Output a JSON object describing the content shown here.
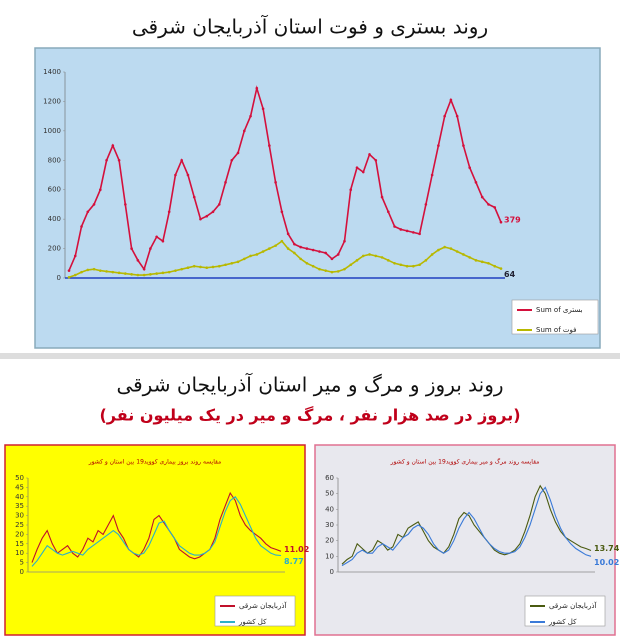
{
  "heading": "روند بروز و مرگ و میر استان آذربایجان شرقی",
  "subheading": "(بروز در صد هزار نفر ، مرگ و میر در یک میلیون نفر)",
  "chart_data": [
    {
      "type": "line",
      "title": "روند بستری و فوت استان آذربایجان شرقی",
      "ylim": [
        0,
        1400
      ],
      "yticks": [
        0,
        200,
        400,
        600,
        800,
        1000,
        1200,
        1400
      ],
      "grid": false,
      "legend": "right",
      "background": "#bcdaf0",
      "series": [
        {
          "name": "Sum of بستری",
          "color": "#d4103c",
          "values": [
            50,
            150,
            350,
            450,
            500,
            600,
            800,
            900,
            800,
            500,
            200,
            120,
            60,
            200,
            280,
            250,
            450,
            700,
            800,
            700,
            550,
            400,
            420,
            450,
            500,
            650,
            800,
            850,
            1000,
            1100,
            1290,
            1150,
            900,
            650,
            450,
            300,
            230,
            210,
            200,
            190,
            180,
            170,
            130,
            160,
            250,
            600,
            750,
            720,
            840,
            800,
            550,
            450,
            350,
            330,
            320,
            310,
            300,
            500,
            700,
            900,
            1100,
            1210,
            1100,
            900,
            750,
            650,
            550,
            500,
            480,
            379
          ]
        },
        {
          "name": "Sum of فوت",
          "color": "#b8b800",
          "values": [
            5,
            20,
            40,
            55,
            60,
            50,
            45,
            40,
            35,
            30,
            25,
            20,
            20,
            25,
            30,
            35,
            40,
            50,
            60,
            70,
            80,
            75,
            70,
            75,
            80,
            90,
            100,
            110,
            130,
            150,
            160,
            180,
            200,
            220,
            250,
            200,
            170,
            130,
            100,
            80,
            60,
            50,
            40,
            45,
            60,
            90,
            120,
            150,
            160,
            150,
            140,
            120,
            100,
            90,
            80,
            80,
            90,
            120,
            160,
            190,
            210,
            200,
            180,
            160,
            140,
            120,
            110,
            100,
            80,
            64
          ]
        }
      ]
    },
    {
      "type": "line",
      "title": "مقایسه روند بروز بیماری کووید19 بین استان و کشور",
      "ylim": [
        0,
        50
      ],
      "yticks": [
        0,
        5,
        10,
        15,
        20,
        25,
        30,
        35,
        40,
        45,
        50
      ],
      "grid": false,
      "legend": "bottom-right",
      "background": "#ffff00",
      "series": [
        {
          "name": "آذربایجان شرقی",
          "color": "#c0102a",
          "values": [
            5,
            12,
            18,
            22,
            15,
            10,
            12,
            14,
            10,
            8,
            12,
            18,
            16,
            22,
            20,
            25,
            30,
            22,
            18,
            12,
            10,
            8,
            12,
            18,
            28,
            30,
            26,
            22,
            18,
            12,
            10,
            8,
            7,
            8,
            10,
            12,
            18,
            28,
            35,
            42,
            38,
            30,
            25,
            22,
            20,
            18,
            15,
            13,
            12,
            11.02
          ]
        },
        {
          "name": "کل کشور",
          "color": "#2bb0c8",
          "values": [
            3,
            6,
            10,
            14,
            12,
            10,
            9,
            10,
            11,
            10,
            9,
            12,
            14,
            16,
            18,
            20,
            22,
            20,
            16,
            12,
            10,
            9,
            10,
            14,
            20,
            26,
            27,
            22,
            18,
            14,
            12,
            10,
            9,
            9,
            10,
            12,
            16,
            24,
            32,
            38,
            40,
            36,
            30,
            24,
            18,
            14,
            12,
            10,
            9,
            8.77
          ]
        }
      ]
    },
    {
      "type": "line",
      "title": "مقایسه روند مرگ و میر بیماری کووید19 بین استان و کشور",
      "ylim": [
        0,
        60
      ],
      "yticks": [
        0,
        10,
        20,
        30,
        40,
        50,
        60
      ],
      "grid": false,
      "legend": "bottom-right",
      "background": "#e8e8ee",
      "series": [
        {
          "name": "آذربایجان شرقی",
          "color": "#4a5a10",
          "values": [
            5,
            8,
            10,
            18,
            15,
            12,
            14,
            20,
            18,
            14,
            16,
            24,
            22,
            28,
            30,
            32,
            26,
            20,
            16,
            14,
            12,
            16,
            24,
            34,
            38,
            36,
            30,
            26,
            22,
            18,
            14,
            12,
            11,
            12,
            14,
            18,
            26,
            36,
            48,
            55,
            50,
            40,
            32,
            26,
            22,
            20,
            18,
            16,
            15,
            13.74
          ]
        },
        {
          "name": "کل کشور",
          "color": "#3a7ad8",
          "values": [
            4,
            6,
            8,
            12,
            14,
            12,
            12,
            16,
            18,
            16,
            14,
            18,
            22,
            24,
            28,
            30,
            28,
            24,
            18,
            14,
            12,
            14,
            20,
            28,
            34,
            38,
            34,
            28,
            22,
            18,
            15,
            13,
            12,
            12,
            13,
            16,
            22,
            30,
            40,
            50,
            54,
            46,
            36,
            28,
            22,
            18,
            15,
            13,
            11,
            10.02
          ]
        }
      ]
    }
  ]
}
